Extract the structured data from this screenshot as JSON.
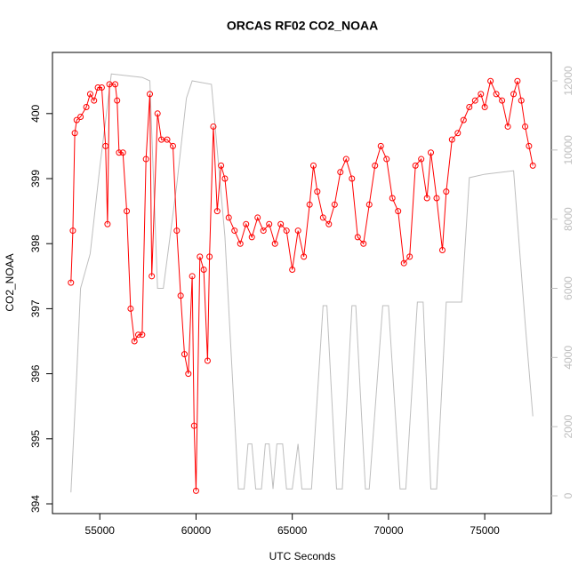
{
  "chart_data": {
    "type": "line",
    "title": "ORCAS RF02 CO2_NOAA",
    "x_label": "UTC Seconds",
    "y_label": "CO2_NOAA",
    "xlim": [
      52540,
      78460
    ],
    "xticks": [
      55000,
      60000,
      65000,
      70000,
      75000
    ],
    "ylim": [
      393.85,
      400.94
    ],
    "yticks": [
      394,
      395,
      396,
      397,
      398,
      399,
      400
    ],
    "y2lim": [
      -514,
      12822
    ],
    "y2ticks": [
      0,
      2000,
      4000,
      6000,
      8000,
      10000,
      12000
    ],
    "series": [
      {
        "color": "#ff0000",
        "marker": "circle",
        "x": [
          53500,
          53600,
          53700,
          53800,
          54000,
          54300,
          54500,
          54700,
          54900,
          55100,
          55300,
          55400,
          55500,
          55800,
          55900,
          56000,
          56200,
          56400,
          56600,
          56800,
          57000,
          57200,
          57400,
          57600,
          57700,
          58000,
          58200,
          58500,
          58800,
          59000,
          59200,
          59400,
          59600,
          59800,
          59900,
          60000,
          60200,
          60400,
          60600,
          60700,
          60900,
          61100,
          61300,
          61500,
          61700,
          62000,
          62300,
          62600,
          62900,
          63200,
          63500,
          63800,
          64100,
          64400,
          64700,
          65000,
          65300,
          65600,
          65900,
          66100,
          66300,
          66600,
          66900,
          67200,
          67500,
          67800,
          68100,
          68400,
          68700,
          69000,
          69300,
          69600,
          69900,
          70200,
          70500,
          70800,
          71100,
          71400,
          71700,
          72000,
          72200,
          72500,
          72800,
          73000,
          73300,
          73600,
          73900,
          74200,
          74500,
          74800,
          75000,
          75300,
          75600,
          75900,
          76200,
          76500,
          76700,
          76900,
          77100,
          77300,
          77500
        ],
        "values": [
          397.4,
          398.2,
          399.7,
          399.9,
          399.95,
          400.1,
          400.3,
          400.2,
          400.4,
          400.4,
          399.5,
          398.3,
          400.45,
          400.45,
          400.2,
          399.4,
          399.4,
          398.5,
          397.0,
          396.5,
          396.6,
          396.6,
          399.3,
          400.3,
          397.5,
          400.0,
          399.6,
          399.6,
          399.5,
          398.2,
          397.2,
          396.3,
          396.0,
          397.5,
          395.2,
          394.2,
          397.8,
          397.6,
          396.2,
          397.8,
          399.8,
          398.5,
          399.2,
          399.0,
          398.4,
          398.2,
          398.0,
          398.3,
          398.1,
          398.4,
          398.2,
          398.3,
          398.0,
          398.3,
          398.2,
          397.6,
          398.2,
          397.8,
          398.6,
          399.2,
          398.8,
          398.4,
          398.3,
          398.6,
          399.1,
          399.3,
          399.0,
          398.1,
          398.0,
          398.6,
          399.2,
          399.5,
          399.3,
          398.7,
          398.5,
          397.7,
          397.8,
          399.2,
          399.3,
          398.7,
          399.4,
          398.7,
          397.9,
          398.8,
          399.6,
          399.7,
          399.9,
          400.1,
          400.2,
          400.3,
          400.1,
          400.5,
          400.3,
          400.2,
          399.8,
          400.3,
          400.5,
          400.2,
          399.8,
          399.5,
          399.2
        ]
      },
      {
        "color": "#bebebe",
        "axis": "y2",
        "x": [
          53500,
          53800,
          54000,
          54500,
          55000,
          55600,
          57200,
          57600,
          58000,
          58300,
          59000,
          59500,
          59800,
          60800,
          61500,
          62200,
          62500,
          62700,
          62900,
          63100,
          63400,
          63600,
          63800,
          64000,
          64200,
          64500,
          64700,
          65000,
          65300,
          65500,
          66000,
          66600,
          66800,
          67300,
          67600,
          68100,
          68300,
          68800,
          69000,
          69700,
          70000,
          70600,
          70900,
          71500,
          71800,
          72200,
          72500,
          73000,
          73200,
          73600,
          73800,
          74200,
          75000,
          76500,
          77100,
          77500
        ],
        "values": [
          100,
          3500,
          6000,
          7000,
          9500,
          12200,
          12100,
          12000,
          6000,
          6000,
          9000,
          11500,
          12000,
          11900,
          7500,
          200,
          200,
          1500,
          1500,
          200,
          200,
          1500,
          1500,
          200,
          1500,
          1500,
          200,
          200,
          1500,
          200,
          200,
          5500,
          5500,
          200,
          200,
          5500,
          5500,
          200,
          200,
          5500,
          5500,
          200,
          200,
          5600,
          5600,
          200,
          200,
          5600,
          5600,
          5600,
          5600,
          9200,
          9300,
          9400,
          5000,
          2300
        ]
      }
    ]
  }
}
